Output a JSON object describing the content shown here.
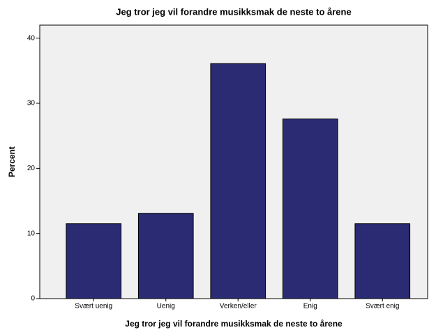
{
  "chart_data": {
    "type": "bar",
    "title": "Jeg tror jeg vil forandre musikksmak de neste to årene",
    "x_label": "Jeg tror jeg vil forandre musikksmak de neste to årene",
    "y_label": "Percent",
    "categories": [
      "Svært uenig",
      "Uenig",
      "Verken/eller",
      "Enig",
      "Svært enig"
    ],
    "values": [
      11.5,
      13.1,
      36.1,
      27.6,
      11.5
    ],
    "color": "#2b2b73",
    "ylim": [
      0,
      42
    ],
    "yticks": [
      0,
      10,
      20,
      30,
      40
    ],
    "grid": false
  }
}
